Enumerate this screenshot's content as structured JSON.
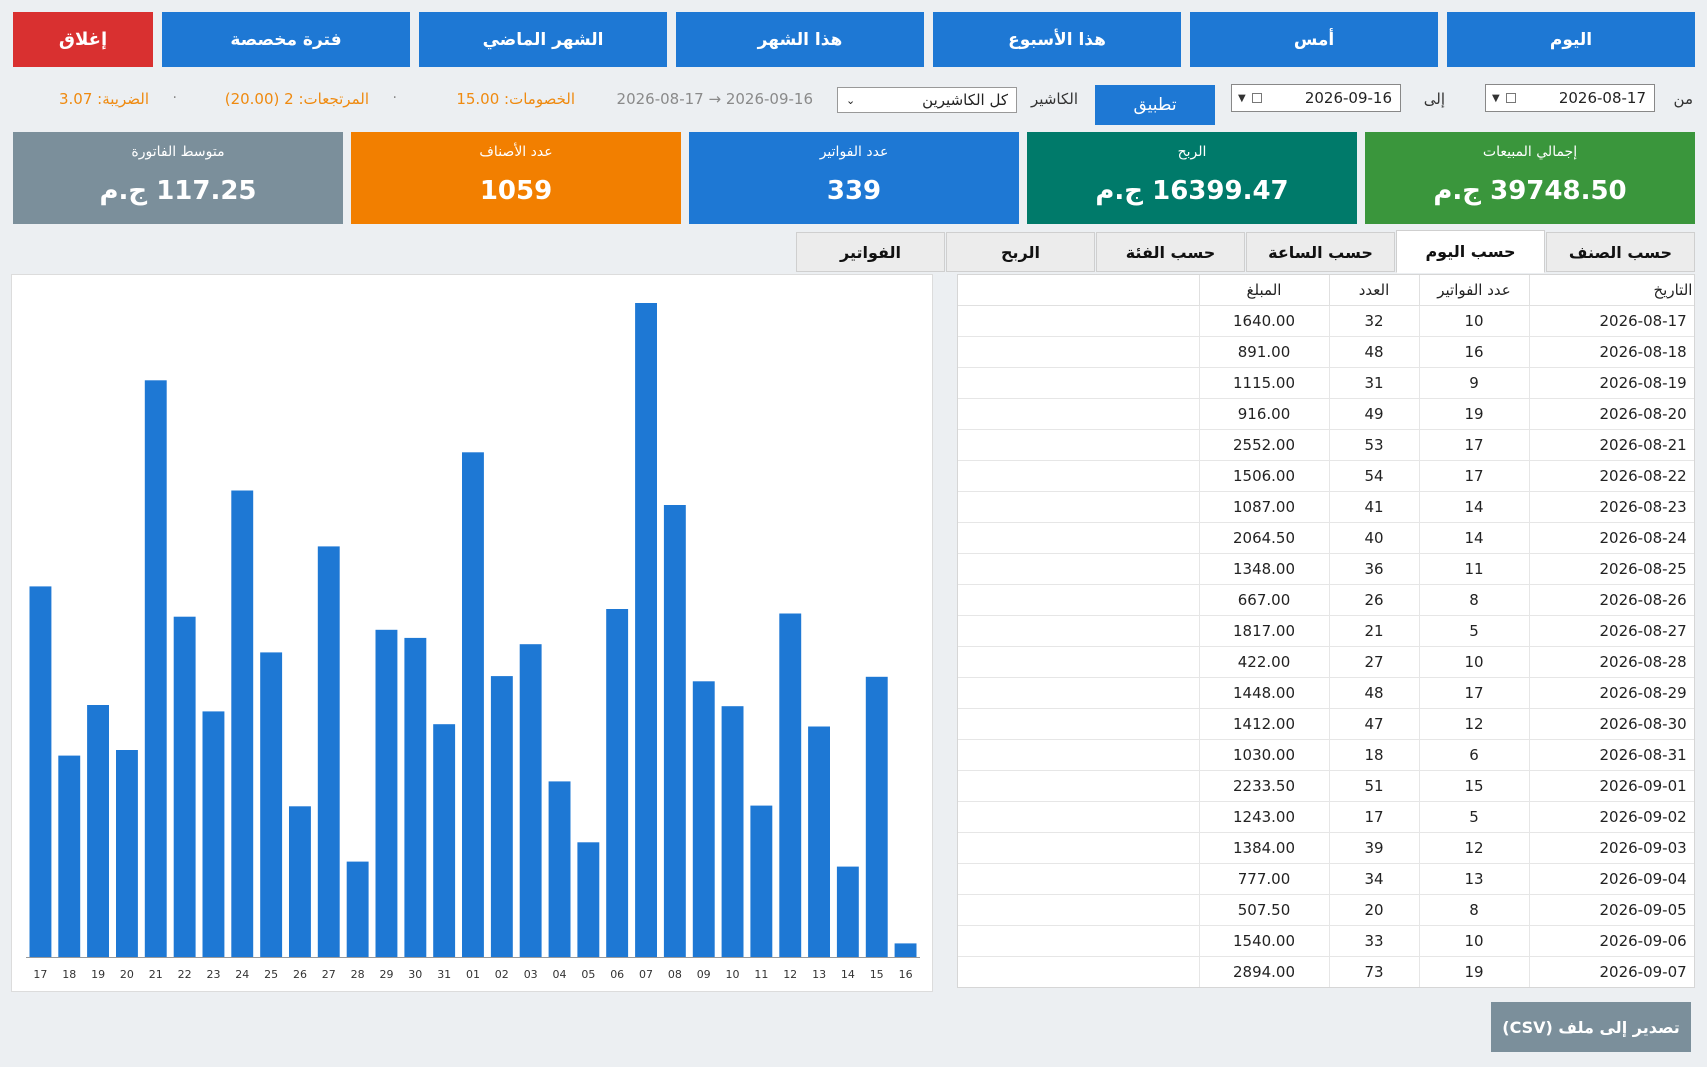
{
  "periods": {
    "today": "اليوم",
    "yesterday": "أمس",
    "this_week": "هذا الأسبوع",
    "this_month": "هذا الشهر",
    "last_month": "الشهر الماضي",
    "custom": "فترة مخصصة",
    "close": "إغلاق"
  },
  "filters": {
    "from_label": "من",
    "from_value": "2026-08-17",
    "to_label": "إلى",
    "to_value": "2026-09-16",
    "apply": "تطبيق",
    "cashier_label": "الكاشير",
    "cashier_value": "كل الكاشيرين",
    "range_text": "2026-08-17 → 2026-09-16",
    "discounts": "الخصومات: 15.00",
    "returns": "المرتجعات: 2 (20.00)",
    "tax": "الضريبة: 3.07",
    "separator": "·"
  },
  "cards": {
    "total_sales": {
      "title": "إجمالي المبيعات",
      "value": "39748.50 ج.م",
      "color": "#3a963c"
    },
    "profit": {
      "title": "الربح",
      "value": "16399.47 ج.م",
      "color": "#007a6a"
    },
    "invoices": {
      "title": "عدد الفواتير",
      "value": "339",
      "color": "#1e78d4"
    },
    "items": {
      "title": "عدد الأصناف",
      "value": "1059",
      "color": "#f27f00"
    },
    "avg_invoice": {
      "title": "متوسط الفاتورة",
      "value": "117.25 ج.م",
      "color": "#7b8f9b"
    }
  },
  "tabs": {
    "by_item": "حسب الصنف",
    "by_day": "حسب اليوم",
    "by_hour": "حسب الساعة",
    "by_category": "حسب الفئة",
    "profit": "الربح",
    "invoices": "الفواتير"
  },
  "table": {
    "headers": {
      "date": "التاريخ",
      "invoices": "عدد الفواتير",
      "count": "العدد",
      "amount": "المبلغ"
    },
    "rows": [
      [
        "2026-08-17",
        "10",
        "32",
        "1640.00"
      ],
      [
        "2026-08-18",
        "16",
        "48",
        "891.00"
      ],
      [
        "2026-08-19",
        "9",
        "31",
        "1115.00"
      ],
      [
        "2026-08-20",
        "19",
        "49",
        "916.00"
      ],
      [
        "2026-08-21",
        "17",
        "53",
        "2552.00"
      ],
      [
        "2026-08-22",
        "17",
        "54",
        "1506.00"
      ],
      [
        "2026-08-23",
        "14",
        "41",
        "1087.00"
      ],
      [
        "2026-08-24",
        "14",
        "40",
        "2064.50"
      ],
      [
        "2026-08-25",
        "11",
        "36",
        "1348.00"
      ],
      [
        "2026-08-26",
        "8",
        "26",
        "667.00"
      ],
      [
        "2026-08-27",
        "5",
        "21",
        "1817.00"
      ],
      [
        "2026-08-28",
        "10",
        "27",
        "422.00"
      ],
      [
        "2026-08-29",
        "17",
        "48",
        "1448.00"
      ],
      [
        "2026-08-30",
        "12",
        "47",
        "1412.00"
      ],
      [
        "2026-08-31",
        "6",
        "18",
        "1030.00"
      ],
      [
        "2026-09-01",
        "15",
        "51",
        "2233.50"
      ],
      [
        "2026-09-02",
        "5",
        "17",
        "1243.00"
      ],
      [
        "2026-09-03",
        "12",
        "39",
        "1384.00"
      ],
      [
        "2026-09-04",
        "13",
        "34",
        "777.00"
      ],
      [
        "2026-09-05",
        "8",
        "20",
        "507.50"
      ],
      [
        "2026-09-06",
        "10",
        "33",
        "1540.00"
      ],
      [
        "2026-09-07",
        "19",
        "73",
        "2894.00"
      ]
    ]
  },
  "chart_data": {
    "type": "bar",
    "categories": [
      "17",
      "18",
      "19",
      "20",
      "21",
      "22",
      "23",
      "24",
      "25",
      "26",
      "27",
      "28",
      "29",
      "30",
      "31",
      "01",
      "02",
      "03",
      "04",
      "05",
      "06",
      "07",
      "08",
      "09",
      "10",
      "11",
      "12",
      "13",
      "14",
      "15",
      "16"
    ],
    "values": [
      1640,
      891,
      1115,
      916,
      2552,
      1506,
      1087,
      2064.5,
      1348,
      667,
      1817,
      422,
      1448,
      1412,
      1030,
      2233.5,
      1243,
      1384,
      777,
      507.5,
      1540,
      2894,
      2000,
      1220,
      1110,
      670,
      1520,
      1020,
      400,
      1240,
      60
    ],
    "ylim": [
      0,
      2894
    ],
    "grid": false,
    "bar_color": "#1e78d4"
  },
  "export": "تصدير إلى ملف (CSV)"
}
